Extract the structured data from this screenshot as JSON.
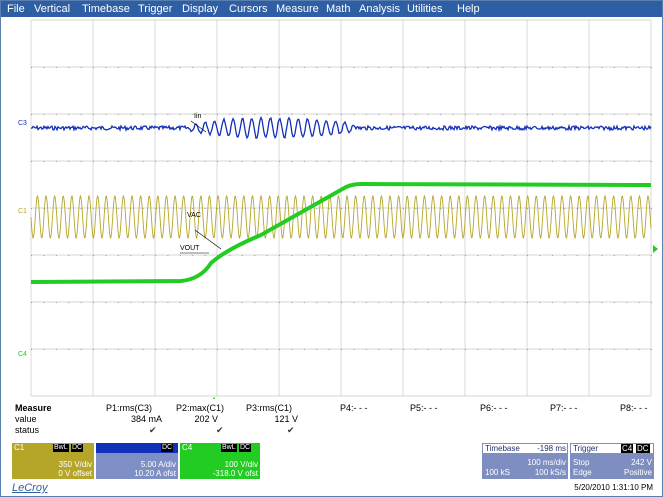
{
  "menu": [
    "File",
    "Vertical",
    "Timebase",
    "Trigger",
    "Display",
    "Cursors",
    "Measure",
    "Math",
    "Analysis",
    "Utilities",
    "Help"
  ],
  "screen": {
    "channel_tags": {
      "c3": "C3",
      "c1": "C1",
      "c4": "C4"
    },
    "wave_labels": {
      "iin": "Iin",
      "vac": "VAC",
      "vout": "VOUT"
    },
    "colors": {
      "c1": "#b5a62a",
      "c3": "#1330b8",
      "c4": "#22cc22",
      "grid": "#c8c8c8",
      "trigger_marker": "#22cc22"
    }
  },
  "measure": {
    "header": "Measure",
    "row_labels": {
      "value": "value",
      "status": "status"
    },
    "params": [
      {
        "name": "P1:rms(C3)",
        "value": "384 mA",
        "status": "✔"
      },
      {
        "name": "P2:max(C1)",
        "value": "202 V",
        "status": "✔"
      },
      {
        "name": "P3:rms(C1)",
        "value": "121 V",
        "status": "✔"
      },
      {
        "name": "P4:- - -",
        "value": "",
        "status": ""
      },
      {
        "name": "P5:- - -",
        "value": "",
        "status": ""
      },
      {
        "name": "P6:- - -",
        "value": "",
        "status": ""
      },
      {
        "name": "P7:- - -",
        "value": "",
        "status": ""
      },
      {
        "name": "P8:- - -",
        "value": "",
        "status": ""
      }
    ]
  },
  "channels": {
    "c1": {
      "label": "C1",
      "badges": [
        "BwL",
        "DC"
      ],
      "vdiv": "350 V/div",
      "offset": "0 V offset",
      "color": "#b5a62a"
    },
    "c3": {
      "label": "",
      "badges": [
        "DC"
      ],
      "vdiv": "5.00 A/div",
      "offset": "10.20 A ofst",
      "color": "#1330b8"
    },
    "c4": {
      "label": "C4",
      "badges": [
        "BwL",
        "DC"
      ],
      "vdiv": "100 V/div",
      "offset": "-318.0 V ofst",
      "color": "#22cc22"
    }
  },
  "timebase": {
    "label": "Timebase",
    "delay": "-198 ms",
    "tdiv": "100 ms/div",
    "samples": "100 kS",
    "rate": "100 kS/s"
  },
  "trigger": {
    "label": "Trigger",
    "source": "C4",
    "coupling": "DC",
    "mode": "Stop",
    "level": "242 V",
    "type": "Edge",
    "slope": "Positive"
  },
  "footer": {
    "brand": "LeCroy",
    "datetime": "5/20/2010 1:31:10 PM"
  }
}
